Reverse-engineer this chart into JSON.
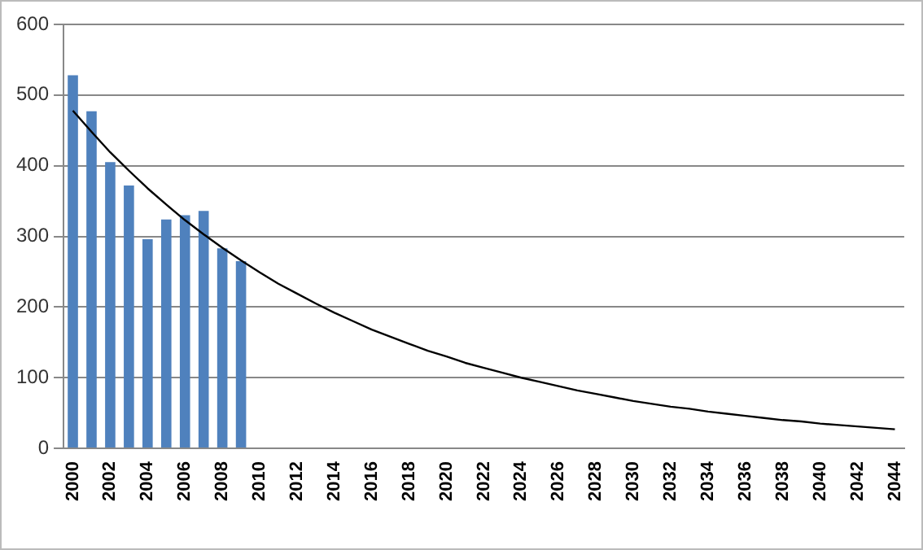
{
  "chart_data": {
    "type": "bar",
    "categories": [
      "2000",
      null,
      "2002",
      null,
      "2004",
      null,
      "2006",
      null,
      "2008",
      null,
      "2010",
      null,
      "2012",
      null,
      "2014",
      null,
      "2016",
      null,
      "2018",
      null,
      "2020",
      null,
      "2022",
      null,
      "2024",
      null,
      "2026",
      null,
      "2028",
      null,
      "2030",
      null,
      "2032",
      null,
      "2034",
      null,
      "2036",
      null,
      "2038",
      null,
      "2040",
      null,
      "2042",
      null,
      "2044"
    ],
    "series": [
      {
        "color": "#4f81bd",
        "values": [
          528,
          477,
          405,
          372,
          296,
          324,
          330,
          336,
          283,
          265,
          null,
          null,
          null,
          null,
          null,
          null,
          null,
          null,
          null,
          null,
          null,
          null,
          null,
          null,
          null,
          null,
          null,
          null,
          null,
          null,
          null,
          null,
          null,
          null,
          null,
          null,
          null,
          null,
          null,
          null,
          null,
          null,
          null,
          null,
          null
        ]
      },
      {
        "type": "line",
        "color": "#000000",
        "values": [
          478,
          448,
          419,
          393,
          368,
          345,
          323,
          303,
          284,
          266,
          249,
          233,
          219,
          205,
          192,
          180,
          168,
          158,
          148,
          138,
          130,
          121,
          114,
          107,
          100,
          94,
          88,
          82,
          77,
          72,
          67,
          63,
          59,
          56,
          52,
          49,
          46,
          43,
          40,
          38,
          35,
          33,
          31,
          29,
          27
        ]
      }
    ],
    "ylim": [
      0,
      600
    ],
    "yticks": [
      0,
      100,
      200,
      300,
      400,
      500,
      600
    ],
    "grid": "y",
    "legend": false,
    "marker": "none",
    "line_style": "solid"
  }
}
